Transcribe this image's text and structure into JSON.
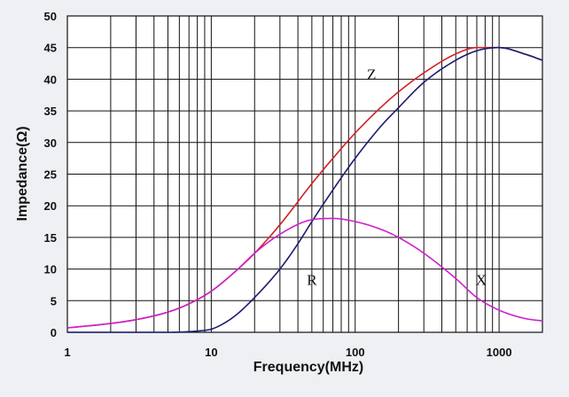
{
  "chart_data": {
    "type": "line",
    "xlabel": "Frequency(MHz)",
    "ylabel": "Impedance(Ω)",
    "x_scale": "log",
    "xlim": [
      1,
      2000
    ],
    "ylim": [
      0,
      50
    ],
    "x_ticks": [
      1,
      10,
      100,
      1000
    ],
    "x_tick_labels": [
      "1",
      "10",
      "100",
      "1000"
    ],
    "y_ticks": [
      0,
      5,
      10,
      15,
      20,
      25,
      30,
      35,
      40,
      45,
      50
    ],
    "y_tick_labels": [
      "0",
      "5",
      "10",
      "15",
      "20",
      "25",
      "30",
      "35",
      "40",
      "45",
      "50"
    ],
    "grid": true,
    "series": [
      {
        "name": "Z",
        "color": "#d42020",
        "x": [
          1,
          2,
          3,
          5,
          7,
          10,
          15,
          20,
          30,
          50,
          70,
          100,
          150,
          200,
          300,
          500,
          700,
          1000,
          1500,
          2000
        ],
        "y": [
          0.7,
          1.4,
          2.0,
          3.2,
          4.5,
          6.5,
          9.8,
          12.5,
          17.0,
          23.5,
          27.5,
          31.5,
          35.5,
          38.0,
          41.0,
          44.0,
          45.0,
          45.0,
          44.0,
          43.0
        ]
      },
      {
        "name": "R",
        "color": "#1c1c6e",
        "x": [
          1,
          5,
          8,
          10,
          12,
          15,
          20,
          30,
          40,
          50,
          70,
          100,
          150,
          200,
          300,
          500,
          700,
          1000,
          1500,
          2000
        ],
        "y": [
          0.0,
          0.0,
          0.2,
          0.5,
          1.3,
          2.8,
          5.5,
          10.0,
          14.0,
          17.5,
          22.5,
          27.5,
          32.5,
          35.5,
          39.5,
          43.0,
          44.5,
          45.0,
          44.0,
          43.0
        ]
      },
      {
        "name": "X",
        "color": "#cc22cc",
        "x": [
          1,
          2,
          3,
          5,
          7,
          10,
          15,
          20,
          30,
          50,
          70,
          100,
          150,
          200,
          300,
          500,
          700,
          1000,
          1500,
          2000
        ],
        "y": [
          0.7,
          1.4,
          2.0,
          3.2,
          4.5,
          6.5,
          9.8,
          12.5,
          15.5,
          17.8,
          18.0,
          17.5,
          16.3,
          15.0,
          12.5,
          8.5,
          5.5,
          3.5,
          2.2,
          1.8
        ]
      }
    ],
    "annotations": [
      {
        "text": "Z",
        "x": 130,
        "y": 40
      },
      {
        "text": "R",
        "x": 50,
        "y": 7.5
      },
      {
        "text": "X",
        "x": 750,
        "y": 7.5
      }
    ]
  }
}
